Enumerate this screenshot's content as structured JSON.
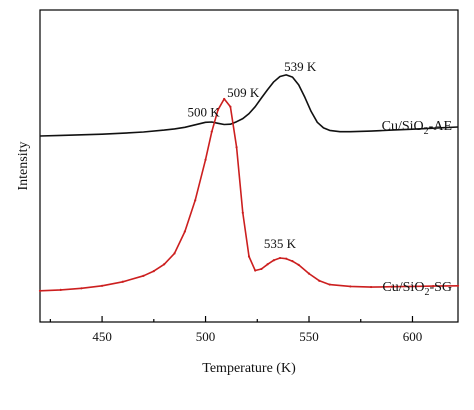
{
  "chart_data": {
    "type": "line",
    "xlabel": "Temperature (K)",
    "ylabel": "Intensity",
    "xlim": [
      420,
      622
    ],
    "ylim": [
      0,
      1
    ],
    "grid": false,
    "x_ticks": [
      450,
      500,
      550,
      600
    ],
    "x_tick_labels": [
      "450",
      "500",
      "550",
      "600"
    ],
    "series": [
      {
        "name": "Cu/SiO2-AE",
        "label_main": "Cu/SiO",
        "label_sub": "2",
        "label_tail": "-AE",
        "color": "#111111",
        "x": [
          420,
          430,
          440,
          450,
          460,
          470,
          480,
          485,
          490,
          495,
          500,
          503,
          506,
          509,
          512,
          515,
          518,
          521,
          524,
          527,
          530,
          533,
          536,
          539,
          542,
          545,
          548,
          551,
          554,
          557,
          560,
          565,
          570,
          580,
          590,
          600,
          610,
          622
        ],
        "y": [
          0.596,
          0.598,
          0.6,
          0.602,
          0.605,
          0.609,
          0.615,
          0.619,
          0.624,
          0.632,
          0.64,
          0.641,
          0.637,
          0.633,
          0.634,
          0.642,
          0.652,
          0.668,
          0.69,
          0.718,
          0.745,
          0.77,
          0.787,
          0.792,
          0.785,
          0.76,
          0.72,
          0.675,
          0.64,
          0.622,
          0.614,
          0.61,
          0.61,
          0.612,
          0.615,
          0.618,
          0.621,
          0.625
        ]
      },
      {
        "name": "Cu/SiO2-SG",
        "label_main": "Cu/SiO",
        "label_sub": "2",
        "label_tail": "-SG",
        "color": "#cc1f1f",
        "x": [
          420,
          430,
          440,
          450,
          460,
          470,
          475,
          480,
          485,
          490,
          495,
          500,
          503,
          506,
          509,
          512,
          515,
          518,
          521,
          524,
          527,
          530,
          533,
          536,
          539,
          542,
          545,
          550,
          555,
          560,
          570,
          580,
          590,
          600,
          610,
          622
        ],
        "y": [
          0.1,
          0.103,
          0.108,
          0.116,
          0.129,
          0.148,
          0.163,
          0.185,
          0.22,
          0.29,
          0.39,
          0.52,
          0.61,
          0.68,
          0.715,
          0.69,
          0.56,
          0.35,
          0.21,
          0.165,
          0.17,
          0.185,
          0.198,
          0.205,
          0.203,
          0.195,
          0.183,
          0.155,
          0.132,
          0.12,
          0.114,
          0.112,
          0.113,
          0.114,
          0.115,
          0.116
        ]
      }
    ],
    "annotations": [
      {
        "text": "539 K",
        "x": 539,
        "y": 0.792
      },
      {
        "text": "500 K",
        "x": 500,
        "y": 0.64
      },
      {
        "text": "509 K",
        "x": 509,
        "y": 0.715
      },
      {
        "text": "535 K",
        "x": 535,
        "y": 0.205
      }
    ]
  }
}
